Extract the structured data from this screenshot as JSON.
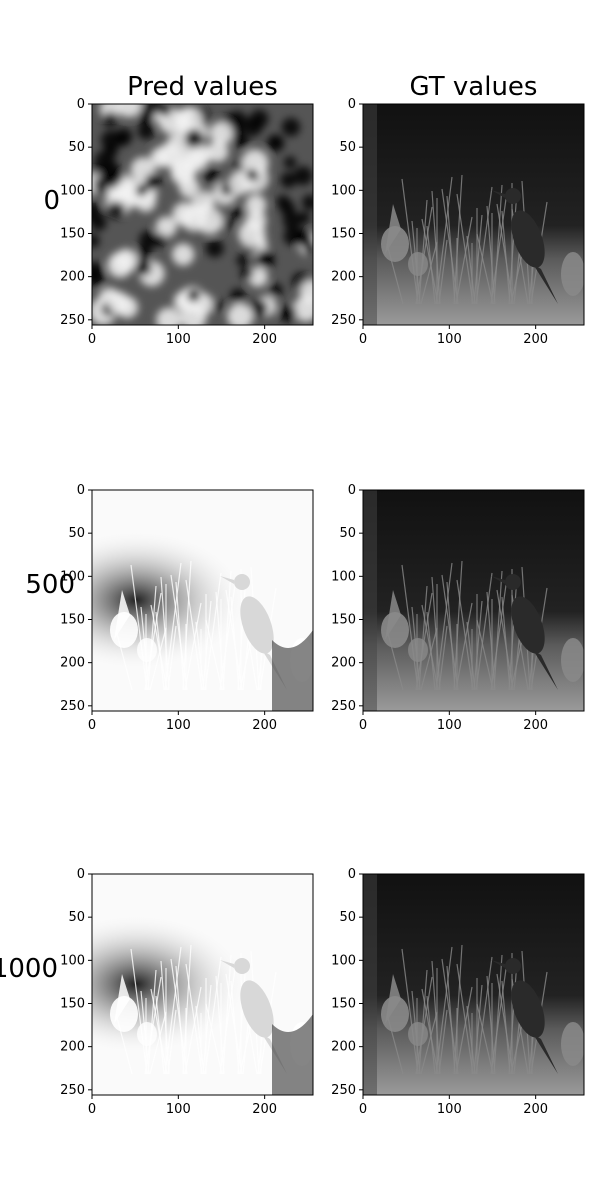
{
  "columns": [
    {
      "title": "Pred values"
    },
    {
      "title": "GT values"
    }
  ],
  "rows": [
    {
      "label": "0"
    },
    {
      "label": "500"
    },
    {
      "label": "1000"
    }
  ],
  "axis": {
    "x_ticks": [
      "0",
      "100",
      "200"
    ],
    "y_ticks": [
      "0",
      "50",
      "100",
      "150",
      "200",
      "250"
    ],
    "range": [
      0,
      256
    ]
  },
  "panels": [
    {
      "row": 0,
      "col": 0,
      "content": "noise-blobs"
    },
    {
      "row": 0,
      "col": 1,
      "content": "bird-grayscale"
    },
    {
      "row": 1,
      "col": 0,
      "content": "bird-overexposed"
    },
    {
      "row": 1,
      "col": 1,
      "content": "bird-grayscale"
    },
    {
      "row": 2,
      "col": 0,
      "content": "bird-overexposed"
    },
    {
      "row": 2,
      "col": 1,
      "content": "bird-grayscale"
    }
  ],
  "colors": {
    "axis": "#000000",
    "background": "#ffffff"
  }
}
